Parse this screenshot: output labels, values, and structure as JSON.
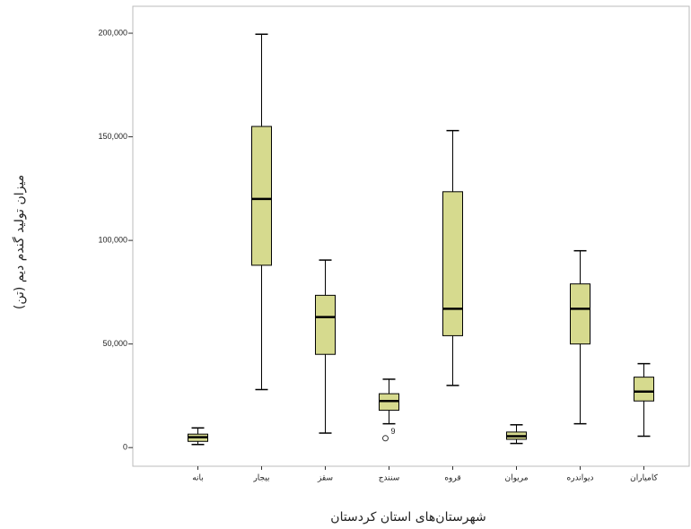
{
  "chart_data": {
    "type": "box",
    "x_label": "شهرستان‌های استان کردستان",
    "y_label": "میزان تولید گندم دیم (تن)",
    "categories": [
      "بانه",
      "بیجار",
      "سقز",
      "سنندج",
      "قروه",
      "مریوان",
      "دیواندره",
      "کامیاران"
    ],
    "boxes": [
      {
        "min": 1500,
        "q1": 3000,
        "median": 5000,
        "q3": 6500,
        "max": 9500
      },
      {
        "min": 28000,
        "q1": 88000,
        "median": 120000,
        "q3": 155000,
        "max": 199500
      },
      {
        "min": 7000,
        "q1": 45000,
        "median": 63000,
        "q3": 73500,
        "max": 90500
      },
      {
        "min": 11500,
        "q1": 18000,
        "median": 22500,
        "q3": 26000,
        "max": 33000,
        "outliers": [
          {
            "value": 4500,
            "label": "9"
          }
        ]
      },
      {
        "min": 30000,
        "q1": 54000,
        "median": 67000,
        "q3": 123500,
        "max": 153000
      },
      {
        "min": 2000,
        "q1": 4000,
        "median": 5500,
        "q3": 7500,
        "max": 11000
      },
      {
        "min": 11500,
        "q1": 50000,
        "median": 67000,
        "q3": 79000,
        "max": 95000
      },
      {
        "min": 5500,
        "q1": 22500,
        "median": 27000,
        "q3": 34000,
        "max": 40500
      }
    ],
    "color": "#d6da8e",
    "ylim": [
      -9000,
      213000
    ],
    "yticks": [
      0,
      {
        "value": 50000,
        "label": "50,000"
      },
      {
        "value": 100000,
        "label": "100,000"
      },
      {
        "value": 150000,
        "label": "150,000"
      },
      {
        "value": 200000,
        "label": "200,000"
      }
    ]
  }
}
